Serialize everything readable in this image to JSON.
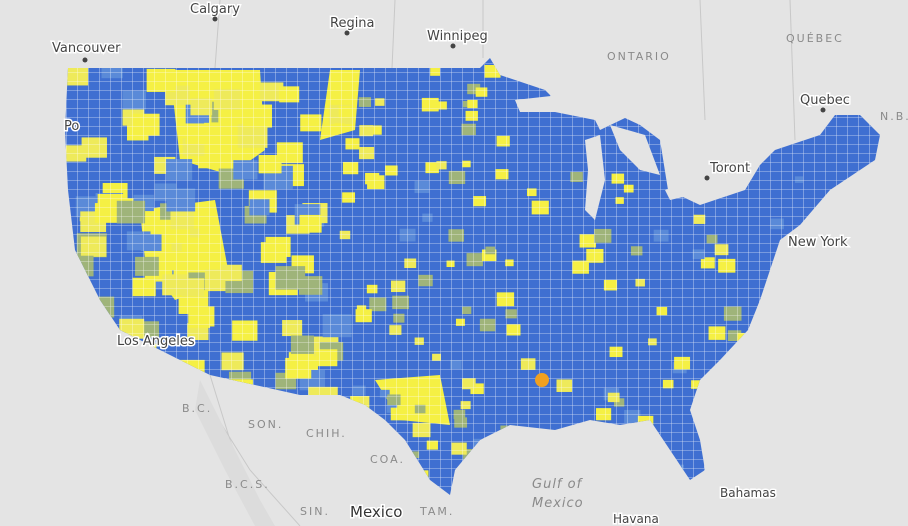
{
  "labels": {
    "calgary": "Calgary",
    "regina": "Regina",
    "winnipeg": "Winnipeg",
    "vancouver": "Vancouver",
    "ontario": "ONTARIO",
    "quebec_province": "QUÉBEC",
    "quebec_city": "Quebec",
    "new_brunswick": "N.B.",
    "toronto": "Toront",
    "new_york": "New York",
    "portland": "Po",
    "los_angeles": "Los Angeles",
    "mexico": "Mexico",
    "sonora": "SON.",
    "chihuahua": "CHIH.",
    "coahuila": "COA.",
    "tamaulipas": "TAM.",
    "baja_california": "B.C.",
    "baja_california_sur": "B.C.S.",
    "sinaloa": "SIN.",
    "gulf_line1": "Gulf of",
    "gulf_line2": "Mexico",
    "bahamas": "Bahamas",
    "havana": "Havana"
  }
}
